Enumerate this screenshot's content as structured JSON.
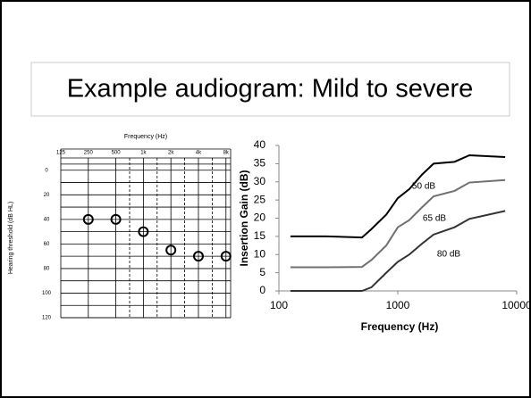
{
  "slide_title": "Example audiogram: Mild to severe",
  "chart_data": [
    {
      "type": "scatter",
      "x_label": "Frequency (Hz)",
      "y_label": "Hearing threshold (dB HL)",
      "x": [
        250,
        500,
        1000,
        2000,
        4000,
        8000
      ],
      "values": [
        40,
        40,
        50,
        65,
        70,
        70
      ],
      "color": "#000000",
      "log_x": true,
      "y_inverted": true,
      "grid": true,
      "xlim": [
        125,
        9000
      ],
      "xticks": [
        125,
        250,
        500,
        {
          "value": 1000,
          "label": "1k"
        },
        {
          "value": 2000,
          "label": "2k"
        },
        {
          "value": 4000,
          "label": "4k"
        },
        {
          "value": 8000,
          "label": "8k"
        }
      ],
      "ylim": [
        -10,
        120
      ],
      "yticks": [
        0,
        20,
        40,
        60,
        80,
        100,
        120
      ]
    },
    {
      "type": "line",
      "x_label": "Frequency (Hz)",
      "y_label": "Insertion Gain (dB)",
      "log_x": true,
      "grid": false,
      "x": [
        125,
        250,
        500,
        600,
        800,
        1000,
        1250,
        1600,
        2000,
        3000,
        4000,
        8000
      ],
      "series": [
        {
          "name": "50 dB",
          "color": "#000000",
          "values": [
            15,
            15,
            14.7,
            17,
            21,
            25.5,
            28,
            32,
            35,
            35.5,
            37.3,
            36.8
          ]
        },
        {
          "name": "65 dB",
          "color": "#707070",
          "values": [
            6.5,
            6.5,
            6.6,
            8.5,
            12.5,
            17.5,
            19.5,
            23,
            26,
            27.5,
            29.8,
            30.5
          ]
        },
        {
          "name": "80 dB",
          "color": "#333333",
          "values": [
            0,
            0,
            0,
            1,
            5,
            8,
            10,
            13,
            15.5,
            17.5,
            19.8,
            22
          ]
        }
      ],
      "xlim": [
        100,
        10000
      ],
      "xticks": [
        100,
        1000,
        10000
      ],
      "ylim": [
        0,
        40
      ],
      "yticks": [
        0,
        5,
        10,
        15,
        20,
        25,
        30,
        35,
        40
      ]
    }
  ]
}
